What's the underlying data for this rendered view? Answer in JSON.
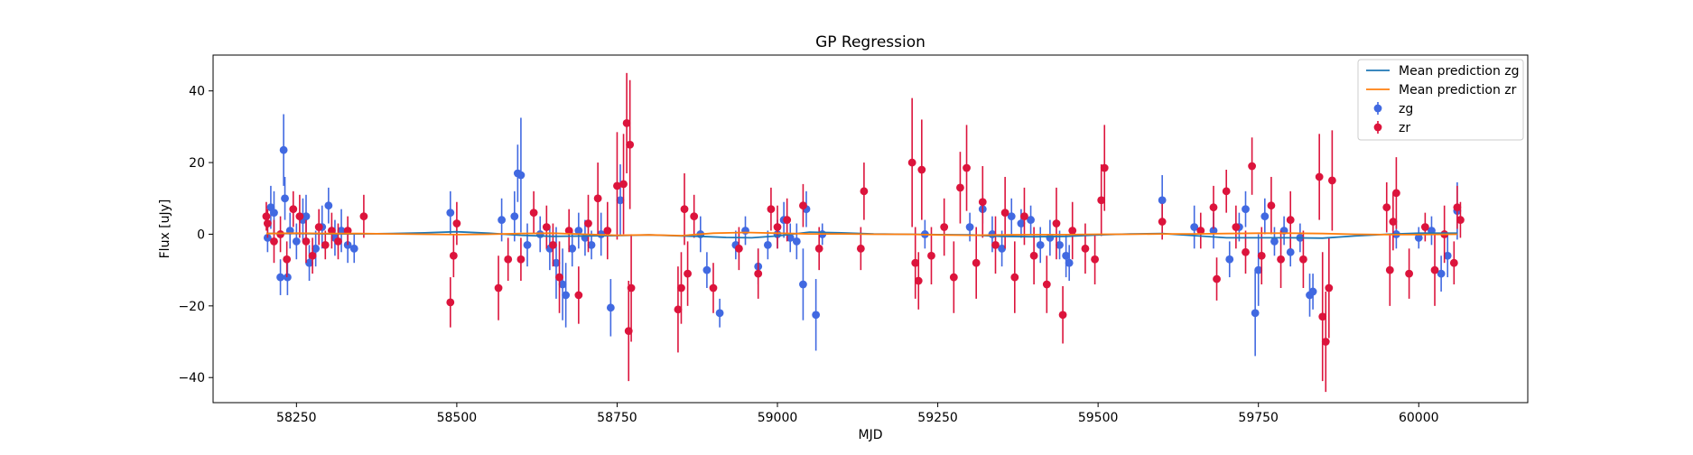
{
  "chart_data": {
    "type": "scatter",
    "title": "GP Regression",
    "xlabel": "MJD",
    "ylabel": "Flux [uJy]",
    "xlim": [
      58120,
      60170
    ],
    "ylim": [
      -47,
      50
    ],
    "x_ticks": [
      58250,
      58500,
      58750,
      59000,
      59250,
      59500,
      59750,
      60000
    ],
    "x_tick_labels": [
      "58250",
      "58500",
      "58750",
      "59000",
      "59250",
      "59500",
      "59750",
      "60000"
    ],
    "y_ticks": [
      -40,
      -20,
      0,
      20,
      40
    ],
    "y_tick_labels": [
      "−40",
      "−20",
      "0",
      "20",
      "40"
    ],
    "grid": false,
    "legend": {
      "placement": "top-right",
      "entries": [
        "Mean prediction zg",
        "Mean prediction zr",
        "zg",
        "zr"
      ]
    },
    "colors": {
      "mean_zg": "#1f77b4",
      "mean_zr": "#ff7f0e",
      "zg": "#4169e1",
      "zr": "#dc143c"
    },
    "series": [
      {
        "name": "Mean prediction zg",
        "kind": "line",
        "x": [
          58203,
          58250,
          58300,
          58350,
          58400,
          58450,
          58500,
          58550,
          58600,
          58650,
          58700,
          58750,
          58800,
          58850,
          58880,
          58920,
          58960,
          59000,
          59050,
          59100,
          59150,
          59200,
          59250,
          59300,
          59350,
          59400,
          59450,
          59500,
          59550,
          59600,
          59650,
          59700,
          59750,
          59800,
          59850,
          59900,
          59950,
          60000,
          60060
        ],
        "y": [
          0.2,
          0.2,
          0.1,
          0.1,
          0.2,
          0.4,
          0.7,
          0.3,
          -0.3,
          -0.6,
          -0.5,
          -0.4,
          -0.2,
          -0.5,
          -0.6,
          -0.9,
          -1.0,
          -0.5,
          0.6,
          0.4,
          0.1,
          0.0,
          -0.1,
          -0.2,
          -0.6,
          -0.7,
          -0.6,
          -0.2,
          0.1,
          0.2,
          -0.4,
          -1.0,
          -1.0,
          -1.0,
          -1.1,
          -0.5,
          0.0,
          0.3,
          0.3
        ]
      },
      {
        "name": "Mean prediction zr",
        "kind": "line",
        "x": [
          58203,
          58250,
          58300,
          58350,
          58400,
          58450,
          58500,
          58550,
          58600,
          58650,
          58700,
          58750,
          58800,
          58850,
          58900,
          58950,
          59000,
          59050,
          59100,
          59150,
          59200,
          59250,
          59300,
          59350,
          59400,
          59450,
          59500,
          59550,
          59600,
          59650,
          59700,
          59750,
          59800,
          59850,
          59900,
          59950,
          60000,
          60060
        ],
        "y": [
          0.2,
          0.3,
          0.2,
          0.2,
          0.1,
          0.0,
          -0.1,
          0.0,
          0.2,
          0.3,
          0.0,
          -0.3,
          -0.2,
          -0.4,
          0.3,
          0.5,
          0.3,
          0.1,
          0.1,
          0.0,
          0.0,
          -0.2,
          -0.3,
          -0.2,
          -0.1,
          -0.1,
          0.0,
          0.0,
          0.1,
          0.1,
          0.2,
          0.3,
          0.3,
          0.2,
          0.0,
          -0.1,
          -0.1,
          0.0
        ]
      },
      {
        "name": "zg",
        "kind": "errorbar",
        "points": [
          [
            58205,
            -1,
            4
          ],
          [
            58210,
            7.5,
            6
          ],
          [
            58215,
            6,
            6
          ],
          [
            58225,
            -12,
            5
          ],
          [
            58230,
            23.5,
            10
          ],
          [
            58232,
            10,
            6
          ],
          [
            58236,
            -12,
            5
          ],
          [
            58240,
            1,
            5
          ],
          [
            58250,
            -2,
            5
          ],
          [
            58260,
            4,
            6
          ],
          [
            58265,
            5,
            6
          ],
          [
            58270,
            -8,
            5
          ],
          [
            58280,
            -4,
            5
          ],
          [
            58290,
            2,
            6
          ],
          [
            58300,
            8,
            5
          ],
          [
            58310,
            -1,
            5
          ],
          [
            58320,
            1,
            6
          ],
          [
            58330,
            -3,
            5
          ],
          [
            58340,
            -4,
            4
          ],
          [
            58490,
            6,
            6
          ],
          [
            58570,
            4,
            6
          ],
          [
            58590,
            5,
            7
          ],
          [
            58595,
            17,
            8
          ],
          [
            58600,
            16.5,
            16
          ],
          [
            58610,
            -3,
            6
          ],
          [
            58630,
            0,
            5
          ],
          [
            58645,
            -4,
            6
          ],
          [
            58655,
            -8,
            10
          ],
          [
            58665,
            -14,
            10
          ],
          [
            58670,
            -17,
            9
          ],
          [
            58680,
            -4,
            5
          ],
          [
            58690,
            1,
            5
          ],
          [
            58700,
            -1,
            5
          ],
          [
            58710,
            -3,
            4
          ],
          [
            58725,
            0,
            6
          ],
          [
            58740,
            -20.5,
            8
          ],
          [
            58755,
            9.5,
            10
          ],
          [
            58880,
            0,
            5
          ],
          [
            58890,
            -10,
            5
          ],
          [
            58910,
            -22,
            4
          ],
          [
            58935,
            -3,
            4
          ],
          [
            58950,
            1,
            4
          ],
          [
            58970,
            -9,
            5
          ],
          [
            58985,
            -3,
            4
          ],
          [
            59000,
            0,
            4
          ],
          [
            59010,
            4,
            5
          ],
          [
            59020,
            -1,
            4
          ],
          [
            59030,
            -2,
            5
          ],
          [
            59040,
            -14,
            10
          ],
          [
            59045,
            7,
            5
          ],
          [
            59060,
            -22.5,
            10
          ],
          [
            59070,
            0,
            3
          ],
          [
            59230,
            0,
            4
          ],
          [
            59300,
            2,
            4
          ],
          [
            59320,
            7,
            4
          ],
          [
            59335,
            0,
            5
          ],
          [
            59350,
            -4,
            5
          ],
          [
            59365,
            5,
            5
          ],
          [
            59380,
            3,
            4
          ],
          [
            59395,
            4,
            4
          ],
          [
            59410,
            -3,
            5
          ],
          [
            59425,
            -1,
            5
          ],
          [
            59440,
            -3,
            4
          ],
          [
            59450,
            -6,
            6
          ],
          [
            59455,
            -8,
            5
          ],
          [
            59600,
            9.5,
            7
          ],
          [
            59650,
            2,
            6
          ],
          [
            59680,
            1,
            5
          ],
          [
            59705,
            -7,
            5
          ],
          [
            59720,
            2,
            4
          ],
          [
            59730,
            7,
            5
          ],
          [
            59745,
            -22,
            12
          ],
          [
            59750,
            -10,
            10
          ],
          [
            59760,
            5,
            5
          ],
          [
            59775,
            -2,
            4
          ],
          [
            59790,
            1,
            4
          ],
          [
            59800,
            -5,
            4
          ],
          [
            59815,
            -1,
            4
          ],
          [
            59830,
            -17,
            6
          ],
          [
            59835,
            -16,
            5
          ],
          [
            59965,
            0,
            4
          ],
          [
            60000,
            -1,
            3
          ],
          [
            60020,
            1,
            4
          ],
          [
            60035,
            -11,
            5
          ],
          [
            60045,
            -6,
            6
          ],
          [
            60060,
            6.5,
            8
          ]
        ]
      },
      {
        "name": "zr",
        "kind": "errorbar",
        "points": [
          [
            58203,
            5,
            4
          ],
          [
            58205,
            3,
            4
          ],
          [
            58215,
            -2,
            6
          ],
          [
            58225,
            0,
            5
          ],
          [
            58235,
            -7,
            5
          ],
          [
            58245,
            7,
            5
          ],
          [
            58255,
            5,
            6
          ],
          [
            58265,
            -2,
            6
          ],
          [
            58275,
            -6,
            5
          ],
          [
            58285,
            2,
            5
          ],
          [
            58295,
            -3,
            4
          ],
          [
            58305,
            1,
            5
          ],
          [
            58315,
            -2,
            5
          ],
          [
            58330,
            1,
            4
          ],
          [
            58355,
            5,
            6
          ],
          [
            58490,
            -19,
            7
          ],
          [
            58495,
            -6,
            6
          ],
          [
            58500,
            3,
            6
          ],
          [
            58565,
            -15,
            9
          ],
          [
            58580,
            -7,
            6
          ],
          [
            58600,
            -7,
            6
          ],
          [
            58620,
            6,
            6
          ],
          [
            58640,
            2,
            6
          ],
          [
            58650,
            -3,
            6
          ],
          [
            58660,
            -12,
            10
          ],
          [
            58675,
            1,
            6
          ],
          [
            58690,
            -17,
            8
          ],
          [
            58705,
            3,
            8
          ],
          [
            58720,
            10,
            10
          ],
          [
            58735,
            1,
            8
          ],
          [
            58750,
            13.5,
            15
          ],
          [
            58760,
            14,
            14
          ],
          [
            58765,
            31,
            14
          ],
          [
            58768,
            -27,
            14
          ],
          [
            58770,
            25,
            18
          ],
          [
            58772,
            -15,
            15
          ],
          [
            58845,
            -21,
            12
          ],
          [
            58850,
            -15,
            10
          ],
          [
            58855,
            7,
            10
          ],
          [
            58860,
            -11,
            9
          ],
          [
            58870,
            5,
            6
          ],
          [
            58900,
            -15,
            7
          ],
          [
            58940,
            -4,
            6
          ],
          [
            58970,
            -11,
            7
          ],
          [
            58990,
            7,
            6
          ],
          [
            59000,
            2,
            6
          ],
          [
            59015,
            4,
            6
          ],
          [
            59040,
            8,
            6
          ],
          [
            59065,
            -4,
            6
          ],
          [
            59130,
            -4,
            6
          ],
          [
            59135,
            12,
            8
          ],
          [
            59210,
            20,
            18
          ],
          [
            59215,
            -8,
            10
          ],
          [
            59220,
            -13,
            8
          ],
          [
            59225,
            18,
            14
          ],
          [
            59240,
            -6,
            8
          ],
          [
            59260,
            2,
            8
          ],
          [
            59275,
            -12,
            10
          ],
          [
            59285,
            13,
            10
          ],
          [
            59295,
            18.5,
            12
          ],
          [
            59310,
            -8,
            10
          ],
          [
            59320,
            9,
            10
          ],
          [
            59340,
            -3,
            8
          ],
          [
            59355,
            6,
            10
          ],
          [
            59370,
            -12,
            10
          ],
          [
            59385,
            5,
            8
          ],
          [
            59400,
            -6,
            8
          ],
          [
            59420,
            -14,
            8
          ],
          [
            59435,
            3,
            10
          ],
          [
            59445,
            -22.5,
            8
          ],
          [
            59460,
            1,
            8
          ],
          [
            59480,
            -4,
            7
          ],
          [
            59495,
            -7,
            7
          ],
          [
            59505,
            9.5,
            10
          ],
          [
            59510,
            18.5,
            12
          ],
          [
            59600,
            3.5,
            5
          ],
          [
            59660,
            1,
            5
          ],
          [
            59680,
            7.5,
            6
          ],
          [
            59685,
            -12.5,
            6
          ],
          [
            59700,
            12,
            6
          ],
          [
            59715,
            2,
            6
          ],
          [
            59730,
            -5,
            6
          ],
          [
            59740,
            19,
            8
          ],
          [
            59755,
            -6,
            8
          ],
          [
            59770,
            8,
            8
          ],
          [
            59785,
            -7,
            8
          ],
          [
            59800,
            4,
            8
          ],
          [
            59820,
            -7,
            8
          ],
          [
            59845,
            16,
            12
          ],
          [
            59850,
            -23,
            18
          ],
          [
            59855,
            -30,
            14
          ],
          [
            59860,
            -15,
            14
          ],
          [
            59865,
            15,
            14
          ],
          [
            59950,
            7.5,
            7
          ],
          [
            59955,
            -10,
            10
          ],
          [
            59960,
            3.5,
            8
          ],
          [
            59965,
            11.5,
            10
          ],
          [
            59985,
            -11,
            7
          ],
          [
            60010,
            2,
            4
          ],
          [
            60025,
            -10,
            10
          ],
          [
            60040,
            0,
            8
          ],
          [
            60055,
            -8,
            6
          ],
          [
            60060,
            7.5,
            6
          ],
          [
            60065,
            4,
            5
          ]
        ]
      }
    ]
  }
}
